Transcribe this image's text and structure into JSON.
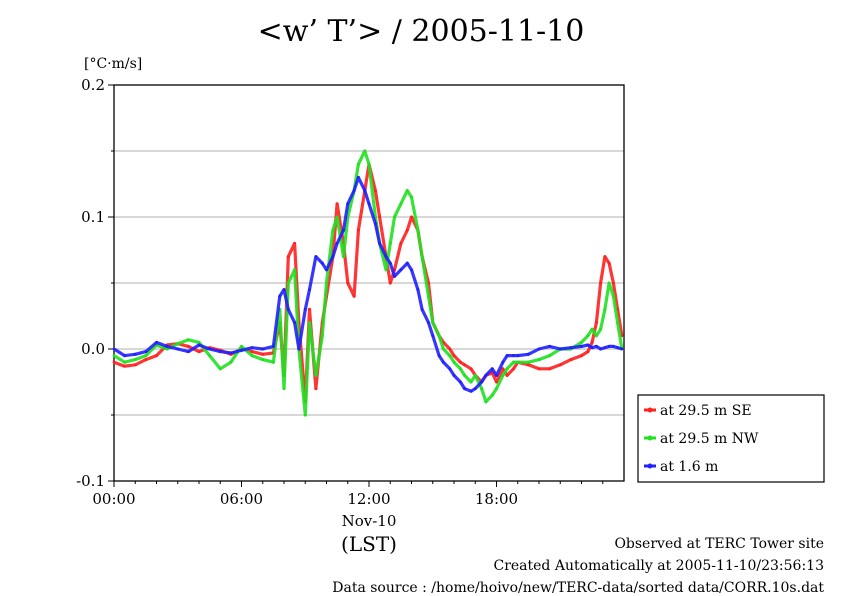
{
  "title": "<w’ T’> / 2005-11-10",
  "units_label": "[°C·m/s]",
  "x_axis": {
    "ticks": [
      "00:00",
      "06:00",
      "12:00",
      "18:00"
    ],
    "date_label": "Nov-10",
    "zone_label": "(LST)"
  },
  "y_axis": {
    "ticks": [
      "0.2",
      "0.1",
      "0.0",
      "-0.1"
    ]
  },
  "footer": {
    "line1": "Observed at TERC Tower site",
    "line2": "Created Automatically at 2005-11-10/23:56:13",
    "line3": "Data source : /home/hoivo/new/TERC-data/sorted  data/CORR.10s.dat"
  },
  "colors": {
    "series1": "#ff2020",
    "series2": "#20e020",
    "series3": "#2020ff",
    "grid": "#b0b0b0"
  },
  "chart_data": {
    "type": "line",
    "xlim": [
      0,
      24
    ],
    "ylim": [
      -0.1,
      0.2
    ],
    "x_unit": "hours LST",
    "grid": true,
    "legend_position": "right",
    "series": [
      {
        "name": "at 29.5 m SE",
        "color": "#ff2020",
        "x": [
          0,
          0.5,
          1,
          1.5,
          2,
          2.5,
          3,
          3.5,
          4,
          4.5,
          5,
          5.5,
          6,
          6.5,
          7,
          7.5,
          7.8,
          8,
          8.2,
          8.5,
          8.7,
          9,
          9.2,
          9.5,
          9.8,
          10,
          10.3,
          10.5,
          10.8,
          11,
          11.3,
          11.5,
          11.8,
          12,
          12.3,
          12.5,
          12.8,
          13,
          13.2,
          13.5,
          13.8,
          14,
          14.3,
          14.5,
          14.8,
          15,
          15.3,
          15.5,
          15.8,
          16,
          16.3,
          16.5,
          16.8,
          17,
          17.3,
          17.5,
          17.8,
          18,
          18.3,
          18.5,
          18.8,
          19,
          19.5,
          20,
          20.5,
          21,
          21.5,
          22,
          22.3,
          22.5,
          22.7,
          22.9,
          23.1,
          23.3,
          23.5,
          23.7,
          23.9
        ],
        "y": [
          -0.01,
          -0.013,
          -0.012,
          -0.008,
          -0.005,
          0.003,
          0.004,
          0.002,
          -0.002,
          0.001,
          -0.001,
          -0.004,
          0.0,
          -0.002,
          -0.004,
          -0.003,
          0.02,
          -0.02,
          0.07,
          0.08,
          0.02,
          -0.04,
          0.03,
          -0.03,
          0.02,
          0.04,
          0.07,
          0.11,
          0.08,
          0.05,
          0.04,
          0.09,
          0.12,
          0.14,
          0.12,
          0.1,
          0.07,
          0.05,
          0.06,
          0.08,
          0.09,
          0.1,
          0.09,
          0.07,
          0.05,
          0.02,
          0.01,
          0.005,
          0.0,
          -0.005,
          -0.01,
          -0.012,
          -0.015,
          -0.02,
          -0.025,
          -0.02,
          -0.018,
          -0.025,
          -0.015,
          -0.02,
          -0.015,
          -0.01,
          -0.012,
          -0.015,
          -0.015,
          -0.012,
          -0.008,
          -0.005,
          -0.002,
          0.005,
          0.02,
          0.05,
          0.07,
          0.065,
          0.05,
          0.03,
          0.01
        ]
      },
      {
        "name": "at 29.5 m NW",
        "color": "#20e020",
        "x": [
          0,
          0.5,
          1,
          1.5,
          2,
          2.5,
          3,
          3.5,
          4,
          4.5,
          5,
          5.5,
          6,
          6.5,
          7,
          7.5,
          7.8,
          8,
          8.2,
          8.5,
          8.7,
          9,
          9.2,
          9.5,
          9.8,
          10,
          10.3,
          10.5,
          10.8,
          11,
          11.3,
          11.5,
          11.8,
          12,
          12.3,
          12.5,
          12.8,
          13,
          13.2,
          13.5,
          13.8,
          14,
          14.3,
          14.5,
          14.8,
          15,
          15.3,
          15.5,
          15.8,
          16,
          16.3,
          16.5,
          16.8,
          17,
          17.3,
          17.5,
          17.8,
          18,
          18.3,
          18.5,
          18.8,
          19,
          19.5,
          20,
          20.5,
          21,
          21.5,
          22,
          22.3,
          22.5,
          22.7,
          22.9,
          23.1,
          23.3,
          23.5,
          23.7,
          23.9
        ],
        "y": [
          -0.005,
          -0.01,
          -0.008,
          -0.005,
          0.003,
          0.0,
          0.004,
          0.007,
          0.005,
          -0.005,
          -0.015,
          -0.01,
          0.002,
          -0.005,
          -0.008,
          -0.01,
          0.03,
          -0.03,
          0.05,
          0.06,
          0.0,
          -0.05,
          0.02,
          -0.02,
          0.01,
          0.05,
          0.09,
          0.1,
          0.07,
          0.1,
          0.12,
          0.14,
          0.15,
          0.14,
          0.1,
          0.08,
          0.06,
          0.08,
          0.1,
          0.11,
          0.12,
          0.115,
          0.09,
          0.07,
          0.04,
          0.02,
          0.01,
          0.0,
          -0.005,
          -0.01,
          -0.015,
          -0.02,
          -0.025,
          -0.02,
          -0.03,
          -0.04,
          -0.035,
          -0.03,
          -0.02,
          -0.015,
          -0.01,
          -0.01,
          -0.01,
          -0.008,
          -0.005,
          0.0,
          0.0,
          0.005,
          0.01,
          0.015,
          0.01,
          0.015,
          0.03,
          0.05,
          0.04,
          0.02,
          0.0
        ]
      },
      {
        "name": "at 1.6 m",
        "color": "#2020ff",
        "x": [
          0,
          0.5,
          1,
          1.5,
          2,
          2.5,
          3,
          3.5,
          4,
          4.5,
          5,
          5.5,
          6,
          6.5,
          7,
          7.5,
          7.8,
          8,
          8.2,
          8.5,
          8.7,
          9,
          9.2,
          9.5,
          9.8,
          10,
          10.3,
          10.5,
          10.8,
          11,
          11.3,
          11.5,
          11.8,
          12,
          12.3,
          12.5,
          12.8,
          13,
          13.2,
          13.5,
          13.8,
          14,
          14.3,
          14.5,
          14.8,
          15,
          15.3,
          15.5,
          15.8,
          16,
          16.3,
          16.5,
          16.8,
          17,
          17.3,
          17.5,
          17.8,
          18,
          18.3,
          18.5,
          18.8,
          19,
          19.5,
          20,
          20.5,
          21,
          21.5,
          22,
          22.3,
          22.5,
          22.7,
          22.9,
          23.1,
          23.3,
          23.5,
          23.7,
          23.9
        ],
        "y": [
          0.0,
          -0.005,
          -0.004,
          -0.002,
          0.005,
          0.002,
          0.0,
          -0.002,
          0.003,
          0.0,
          -0.002,
          -0.003,
          -0.001,
          0.001,
          0.0,
          0.002,
          0.04,
          0.045,
          0.03,
          0.02,
          0.0,
          0.03,
          0.045,
          0.07,
          0.065,
          0.06,
          0.07,
          0.08,
          0.09,
          0.11,
          0.12,
          0.13,
          0.12,
          0.11,
          0.095,
          0.08,
          0.07,
          0.065,
          0.055,
          0.06,
          0.065,
          0.06,
          0.045,
          0.03,
          0.02,
          0.01,
          -0.005,
          -0.01,
          -0.015,
          -0.02,
          -0.025,
          -0.03,
          -0.032,
          -0.03,
          -0.025,
          -0.02,
          -0.015,
          -0.02,
          -0.01,
          -0.005,
          -0.005,
          -0.005,
          -0.004,
          0.0,
          0.002,
          0.0,
          0.001,
          0.002,
          0.003,
          0.001,
          0.002,
          0.0,
          0.001,
          0.002,
          0.002,
          0.001,
          0.0
        ]
      }
    ]
  }
}
